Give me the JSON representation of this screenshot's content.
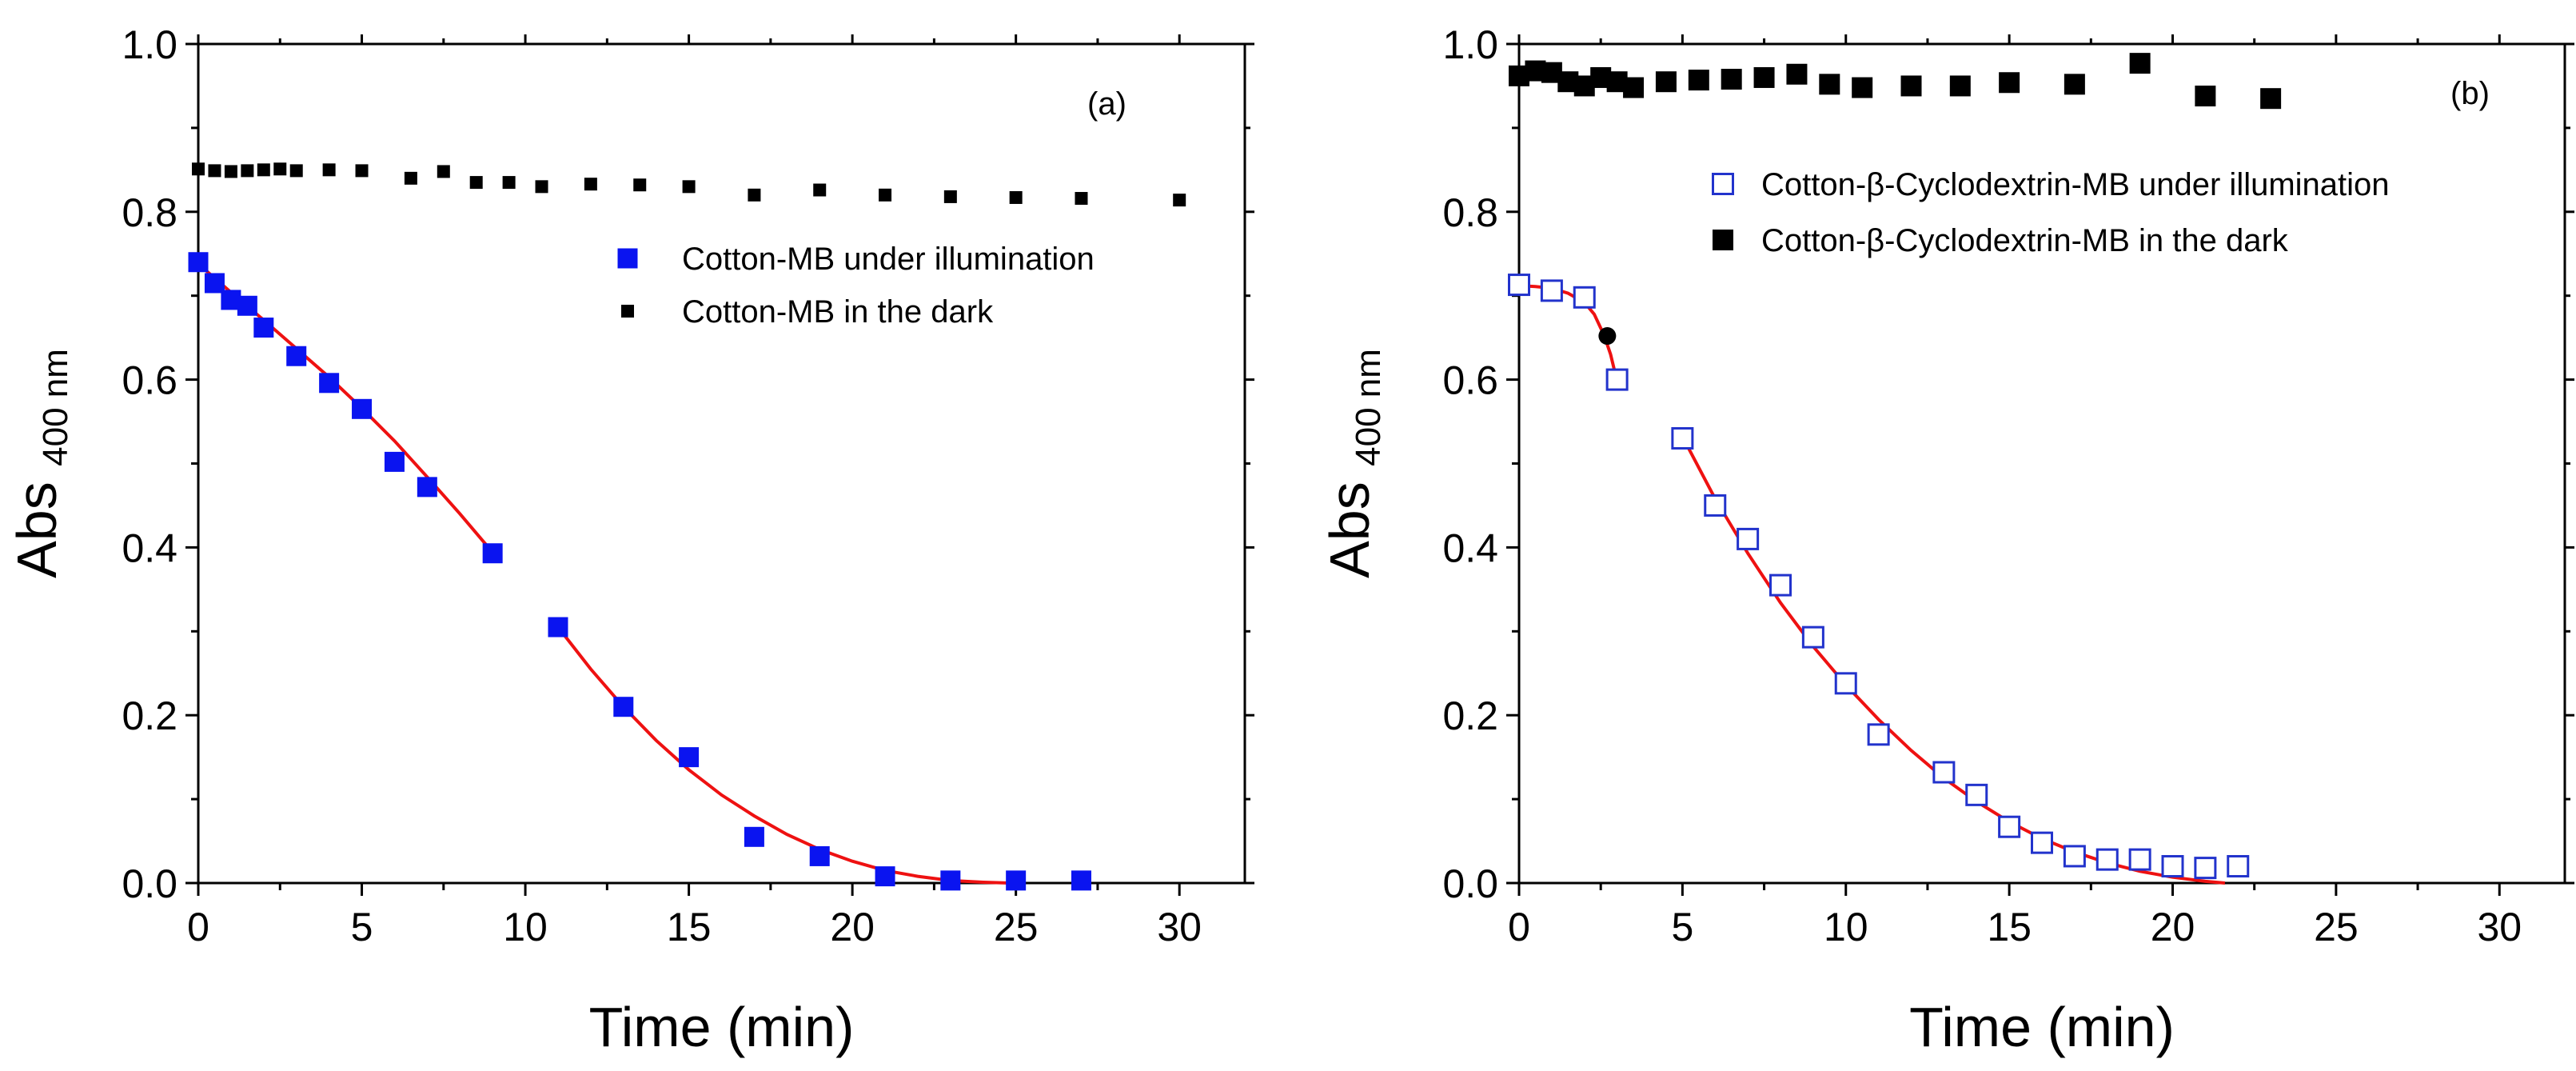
{
  "chart_data": [
    {
      "type": "scatter",
      "panel_label": "(a)",
      "xlabel": "Time (min)",
      "ylabel_main": "Abs",
      "ylabel_sub": "400 nm",
      "xlim": [
        0,
        32
      ],
      "ylim": [
        0,
        1.0
      ],
      "xticks": [
        0,
        5,
        10,
        15,
        20,
        25,
        30
      ],
      "yticks": [
        0.0,
        0.2,
        0.4,
        0.6,
        0.8,
        1.0
      ],
      "xtick_labels": [
        "0",
        "5",
        "10",
        "15",
        "20",
        "25",
        "30"
      ],
      "ytick_labels": [
        "0.0",
        "0.2",
        "0.4",
        "0.6",
        "0.8",
        "1.0"
      ],
      "legend_position": "top-right",
      "series": [
        {
          "name": "Cotton-MB under illumination",
          "marker": "filled-square",
          "color": "#0a14f0",
          "x": [
            0,
            0.5,
            1,
            1.5,
            2,
            3,
            4,
            5,
            6,
            7,
            9,
            11,
            13,
            15,
            17,
            19,
            21,
            23,
            25,
            27
          ],
          "y": [
            0.74,
            0.715,
            0.695,
            0.688,
            0.662,
            0.628,
            0.596,
            0.565,
            0.502,
            0.472,
            0.393,
            0.305,
            0.21,
            0.15,
            0.055,
            0.032,
            0.008,
            0.003,
            0.003,
            0.003
          ]
        },
        {
          "name": "Cotton-MB in the dark",
          "marker": "small-square",
          "color": "#000000",
          "x": [
            0,
            0.5,
            1,
            1.5,
            2,
            2.5,
            3,
            4,
            5,
            6.5,
            7.5,
            8.5,
            9.5,
            10.5,
            12,
            13.5,
            15,
            17,
            19,
            21,
            23,
            25,
            27,
            30
          ],
          "y": [
            0.851,
            0.849,
            0.848,
            0.849,
            0.85,
            0.851,
            0.849,
            0.85,
            0.849,
            0.84,
            0.848,
            0.835,
            0.835,
            0.83,
            0.833,
            0.832,
            0.83,
            0.82,
            0.826,
            0.82,
            0.818,
            0.817,
            0.816,
            0.814
          ]
        }
      ],
      "fit_lines": [
        {
          "name": "fit-1",
          "color": "#ee1111",
          "x": [
            0,
            1,
            2,
            3,
            4,
            5,
            6,
            7,
            8,
            9
          ],
          "y": [
            0.738,
            0.704,
            0.671,
            0.637,
            0.603,
            0.566,
            0.527,
            0.484,
            0.44,
            0.394
          ]
        },
        {
          "name": "fit-2",
          "color": "#ee1111",
          "x": [
            11,
            12,
            13,
            14,
            15,
            16,
            17,
            18,
            19,
            20,
            21,
            22,
            23,
            24,
            24.8
          ],
          "y": [
            0.305,
            0.255,
            0.21,
            0.17,
            0.135,
            0.105,
            0.08,
            0.058,
            0.04,
            0.026,
            0.015,
            0.008,
            0.003,
            0.001,
            0.0
          ]
        }
      ]
    },
    {
      "type": "scatter",
      "panel_label": "(b)",
      "xlabel": "Time (min)",
      "ylabel_main": "Abs",
      "ylabel_sub": "400 nm",
      "xlim": [
        0,
        32
      ],
      "ylim": [
        0,
        1.0
      ],
      "xticks": [
        0,
        5,
        10,
        15,
        20,
        25,
        30
      ],
      "yticks": [
        0.0,
        0.2,
        0.4,
        0.6,
        0.8,
        1.0
      ],
      "xtick_labels": [
        "0",
        "5",
        "10",
        "15",
        "20",
        "25",
        "30"
      ],
      "ytick_labels": [
        "0.0",
        "0.2",
        "0.4",
        "0.6",
        "0.8",
        "1.0"
      ],
      "legend_position": "top-right",
      "series": [
        {
          "name": "Cotton-β-Cyclodextrin-MB under illumination",
          "marker": "open-square",
          "color": "#2233cc",
          "x": [
            0,
            1,
            2,
            3,
            5,
            6,
            7,
            8,
            9,
            10,
            11,
            13,
            14,
            15,
            16,
            17,
            18,
            19,
            20,
            21,
            22
          ],
          "y": [
            0.713,
            0.706,
            0.698,
            0.6,
            0.53,
            0.45,
            0.41,
            0.355,
            0.293,
            0.238,
            0.177,
            0.132,
            0.105,
            0.067,
            0.048,
            0.032,
            0.028,
            0.028,
            0.02,
            0.018,
            0.02
          ]
        },
        {
          "name": "Cotton-β-Cyclodextrin-MB in the dark",
          "marker": "filled-square",
          "color": "#000000",
          "x": [
            0,
            0.5,
            1,
            1.5,
            2,
            2.5,
            3,
            3.5,
            4.5,
            5.5,
            6.5,
            7.5,
            8.5,
            9.5,
            10.5,
            12,
            13.5,
            15,
            17,
            19,
            21,
            23
          ],
          "y": [
            0.962,
            0.968,
            0.966,
            0.955,
            0.95,
            0.96,
            0.955,
            0.948,
            0.955,
            0.957,
            0.958,
            0.96,
            0.964,
            0.952,
            0.948,
            0.95,
            0.95,
            0.954,
            0.952,
            0.977,
            0.938,
            0.935
          ]
        }
      ],
      "fit_lines": [
        {
          "name": "fit-1",
          "color": "#ee1111",
          "x": [
            0,
            0.5,
            1,
            1.5,
            2,
            2.3,
            2.6,
            2.8,
            3.0
          ],
          "y": [
            0.712,
            0.711,
            0.709,
            0.703,
            0.692,
            0.678,
            0.653,
            0.63,
            0.598
          ]
        },
        {
          "name": "fit-2",
          "color": "#ee1111",
          "x": [
            5,
            6,
            7,
            8,
            9,
            10,
            11,
            12,
            13,
            14,
            15,
            16,
            17,
            18,
            19,
            20,
            21,
            21.6
          ],
          "y": [
            0.532,
            0.458,
            0.393,
            0.334,
            0.282,
            0.236,
            0.195,
            0.158,
            0.125,
            0.097,
            0.073,
            0.053,
            0.037,
            0.024,
            0.014,
            0.007,
            0.002,
            0.0
          ]
        }
      ],
      "annotation_point": {
        "color": "#000000",
        "x": 2.7,
        "y": 0.652
      }
    }
  ]
}
